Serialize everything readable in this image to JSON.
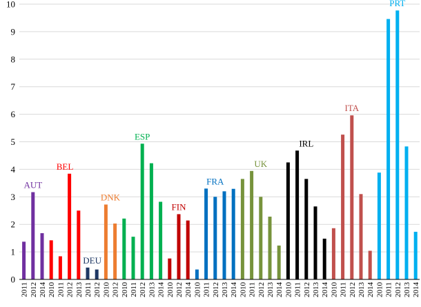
{
  "chart_data": {
    "type": "bar",
    "title": "",
    "xlabel": "",
    "ylabel": "",
    "ylim": [
      0,
      10
    ],
    "yticks": [
      0,
      1,
      2,
      3,
      4,
      5,
      6,
      7,
      8,
      9,
      10
    ],
    "grid": "horizontal",
    "legend": "none",
    "groups": [
      {
        "name": "AUT",
        "color": "#7030a0",
        "bars": [
          {
            "year": "2011",
            "value": 1.37
          },
          {
            "year": "2012",
            "value": 3.17
          },
          {
            "year": "2014",
            "value": 1.68
          }
        ]
      },
      {
        "name": "BEL",
        "color": "#ff0000",
        "bars": [
          {
            "year": "2010",
            "value": 1.42
          },
          {
            "year": "2011",
            "value": 0.84
          },
          {
            "year": "2012",
            "value": 3.84
          },
          {
            "year": "2013",
            "value": 2.5
          }
        ]
      },
      {
        "name": "DEU",
        "color": "#1f3864",
        "bars": [
          {
            "year": "2011",
            "value": 0.43
          },
          {
            "year": "2012",
            "value": 0.36
          }
        ]
      },
      {
        "name": "DNK",
        "color": "#ed7d31",
        "bars": [
          {
            "year": "2010",
            "value": 2.72
          },
          {
            "year": "2012",
            "value": 2.03
          }
        ]
      },
      {
        "name": "ESP",
        "color": "#00b050",
        "bars": [
          {
            "year": "2010",
            "value": 2.21
          },
          {
            "year": "2011",
            "value": 1.55
          },
          {
            "year": "2012",
            "value": 4.93
          },
          {
            "year": "2013",
            "value": 4.22
          },
          {
            "year": "2014",
            "value": 2.82
          }
        ]
      },
      {
        "name": "FIN",
        "color": "#c00000",
        "bars": [
          {
            "year": "2010",
            "value": 0.76
          },
          {
            "year": "2012",
            "value": 2.37
          },
          {
            "year": "2014",
            "value": 2.14
          }
        ]
      },
      {
        "name": "FRA",
        "color": "#0070c0",
        "bars": [
          {
            "year": "2010",
            "value": 0.36
          },
          {
            "year": "2011",
            "value": 3.3
          },
          {
            "year": "2012",
            "value": 3.0
          },
          {
            "year": "2013",
            "value": 3.2
          },
          {
            "year": "2014",
            "value": 3.29
          }
        ]
      },
      {
        "name": "UK",
        "color": "#77933c",
        "bars": [
          {
            "year": "2010",
            "value": 3.65
          },
          {
            "year": "2011",
            "value": 3.94
          },
          {
            "year": "2012",
            "value": 3.0
          },
          {
            "year": "2013",
            "value": 2.28
          },
          {
            "year": "2014",
            "value": 1.23
          }
        ]
      },
      {
        "name": "IRL",
        "color": "#000000",
        "bars": [
          {
            "year": "2010",
            "value": 4.25
          },
          {
            "year": "2011",
            "value": 4.68
          },
          {
            "year": "2012",
            "value": 3.65
          },
          {
            "year": "2013",
            "value": 2.65
          },
          {
            "year": "2014",
            "value": 1.48
          }
        ]
      },
      {
        "name": "ITA",
        "color": "#c0504d",
        "bars": [
          {
            "year": "2010",
            "value": 1.86
          },
          {
            "year": "2011",
            "value": 5.26
          },
          {
            "year": "2012",
            "value": 5.96
          },
          {
            "year": "2013",
            "value": 3.1
          },
          {
            "year": "2014",
            "value": 1.04
          }
        ]
      },
      {
        "name": "PRT",
        "color": "#00b0f0",
        "bars": [
          {
            "year": "2010",
            "value": 3.88
          },
          {
            "year": "2011",
            "value": 9.46
          },
          {
            "year": "2012",
            "value": 9.77
          },
          {
            "year": "2013",
            "value": 4.83
          },
          {
            "year": "2014",
            "value": 1.73
          }
        ]
      }
    ]
  }
}
